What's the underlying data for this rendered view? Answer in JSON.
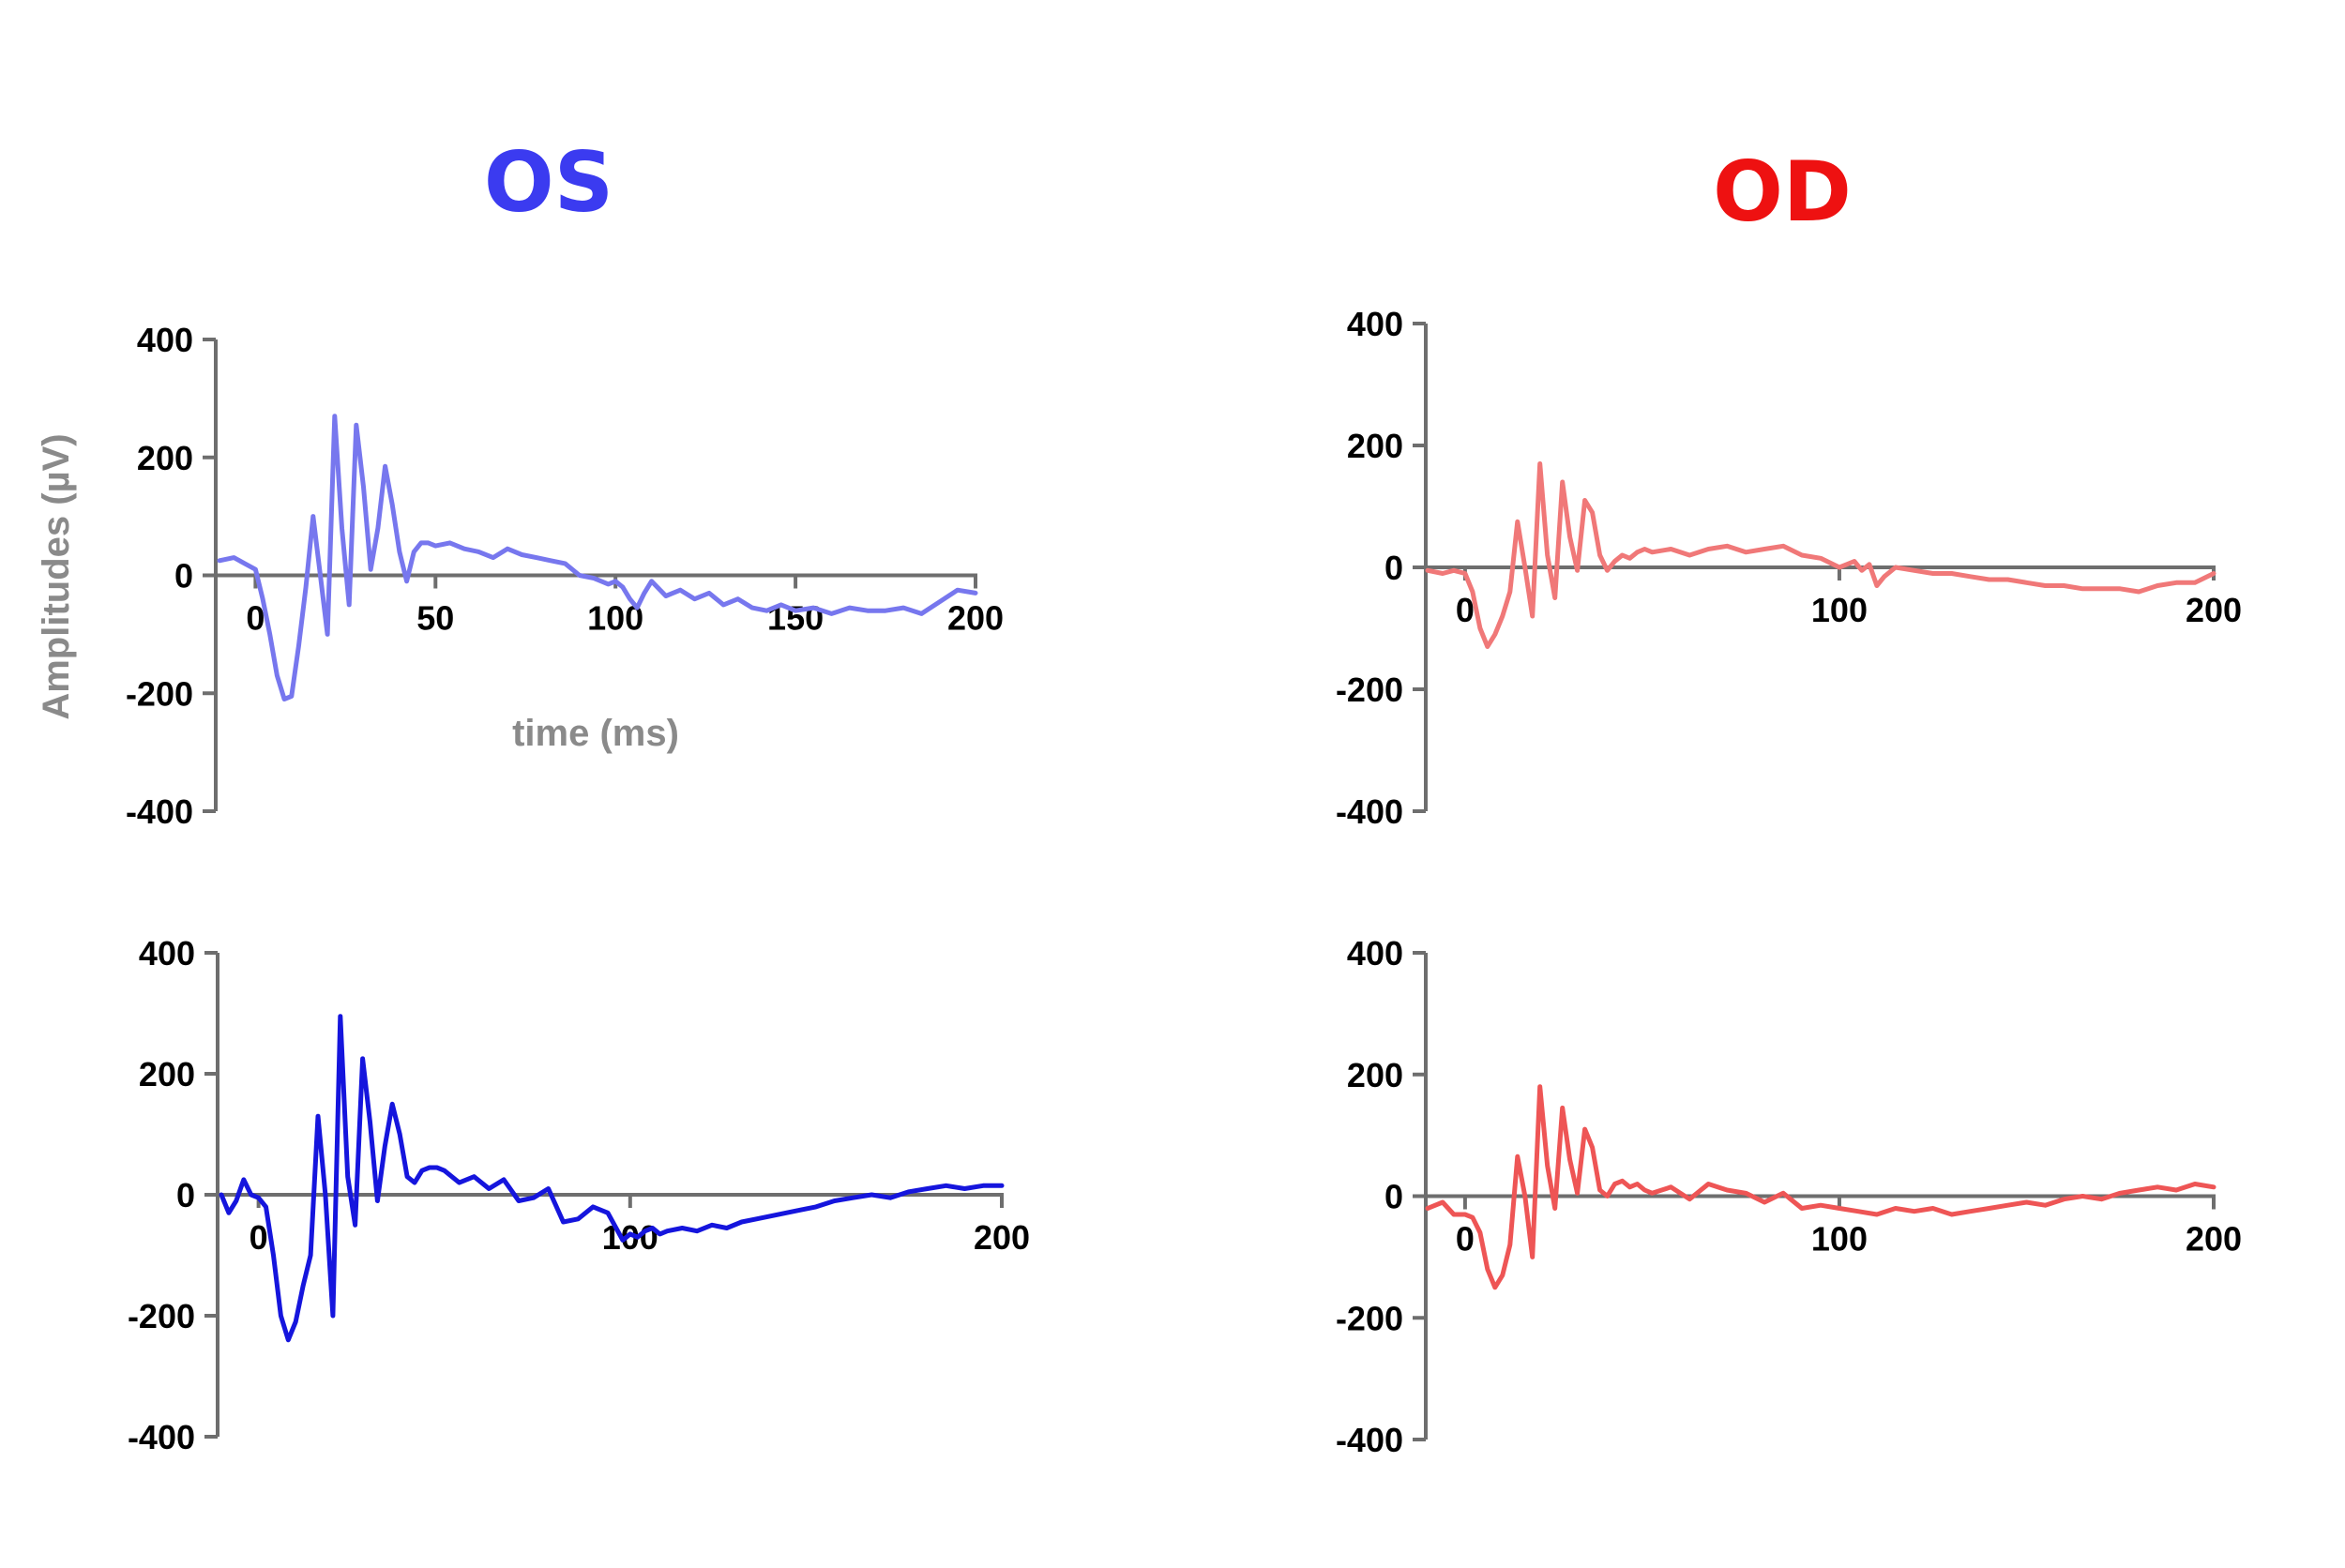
{
  "titles": {
    "left": "OS",
    "right": "OD",
    "left_color": "#3b3bf0",
    "right_color": "#ee1111"
  },
  "axis_color": "#6e6e6e",
  "chart_data": [
    {
      "type": "line",
      "column": "OS",
      "row": 1,
      "xlabel": "time (ms)",
      "ylabel": "Amplitudes (µV)",
      "xticks": [
        0,
        50,
        100,
        150,
        200
      ],
      "yticks": [
        400,
        200,
        0,
        -200,
        -400
      ],
      "xlim": [
        -10,
        200
      ],
      "ylim": [
        -400,
        400
      ],
      "grid": false,
      "color": "#7777ee",
      "x": [
        -10,
        -6,
        -3,
        0,
        2,
        4,
        6,
        8,
        10,
        12,
        14,
        16,
        18,
        20,
        22,
        24,
        26,
        28,
        30,
        32,
        34,
        36,
        38,
        40,
        42,
        44,
        46,
        48,
        50,
        54,
        58,
        62,
        66,
        70,
        74,
        78,
        82,
        86,
        90,
        94,
        98,
        100,
        102,
        104,
        106,
        108,
        110,
        114,
        118,
        122,
        126,
        130,
        134,
        138,
        142,
        146,
        150,
        155,
        160,
        165,
        170,
        175,
        180,
        185,
        190,
        195,
        200
      ],
      "y": [
        25,
        30,
        20,
        10,
        -40,
        -100,
        -170,
        -210,
        -205,
        -120,
        -20,
        100,
        0,
        -100,
        270,
        80,
        -50,
        255,
        150,
        10,
        80,
        185,
        120,
        40,
        -10,
        40,
        55,
        55,
        50,
        55,
        45,
        40,
        30,
        45,
        35,
        30,
        25,
        20,
        0,
        -5,
        -15,
        -10,
        -20,
        -40,
        -55,
        -30,
        -10,
        -35,
        -25,
        -40,
        -30,
        -50,
        -40,
        -55,
        -60,
        -50,
        -60,
        -55,
        -65,
        -55,
        -60,
        -60,
        -55,
        -65,
        -45,
        -25,
        -30
      ]
    },
    {
      "type": "line",
      "column": "OS",
      "row": 2,
      "xticks": [
        0,
        100,
        200
      ],
      "yticks": [
        400,
        200,
        0,
        -200,
        -400
      ],
      "xlim": [
        -10,
        200
      ],
      "ylim": [
        -400,
        400
      ],
      "grid": false,
      "color": "#1515dd",
      "x": [
        -10,
        -8,
        -6,
        -4,
        -2,
        0,
        2,
        4,
        6,
        8,
        10,
        12,
        14,
        16,
        18,
        20,
        22,
        24,
        26,
        28,
        30,
        32,
        34,
        36,
        38,
        40,
        42,
        44,
        46,
        48,
        50,
        54,
        58,
        62,
        66,
        70,
        74,
        78,
        82,
        86,
        90,
        94,
        98,
        100,
        102,
        104,
        106,
        108,
        110,
        114,
        118,
        122,
        126,
        130,
        134,
        138,
        142,
        146,
        150,
        155,
        160,
        165,
        170,
        175,
        180,
        185,
        190,
        195,
        200
      ],
      "y": [
        0,
        -30,
        -10,
        25,
        0,
        -5,
        -20,
        -100,
        -200,
        -240,
        -210,
        -150,
        -100,
        130,
        0,
        -200,
        295,
        30,
        -50,
        225,
        120,
        -10,
        80,
        150,
        100,
        30,
        20,
        40,
        45,
        45,
        40,
        20,
        30,
        10,
        25,
        -10,
        -5,
        10,
        -45,
        -40,
        -20,
        -30,
        -75,
        -65,
        -70,
        -60,
        -55,
        -65,
        -60,
        -55,
        -60,
        -50,
        -55,
        -45,
        -40,
        -35,
        -30,
        -25,
        -20,
        -10,
        -5,
        0,
        -5,
        5,
        10,
        15,
        10,
        15,
        15
      ]
    },
    {
      "type": "line",
      "column": "OD",
      "row": 1,
      "xticks": [
        0,
        100,
        200
      ],
      "yticks": [
        400,
        200,
        0,
        -200,
        -400
      ],
      "xlim": [
        -10,
        200
      ],
      "ylim": [
        -400,
        400
      ],
      "grid": false,
      "color": "#f07878",
      "x": [
        -10,
        -6,
        -3,
        0,
        2,
        4,
        6,
        8,
        10,
        12,
        14,
        16,
        18,
        20,
        22,
        24,
        26,
        28,
        30,
        32,
        34,
        36,
        38,
        40,
        42,
        44,
        46,
        48,
        50,
        55,
        60,
        65,
        70,
        75,
        80,
        85,
        90,
        95,
        100,
        102,
        104,
        106,
        108,
        110,
        112,
        115,
        120,
        125,
        130,
        135,
        140,
        145,
        150,
        155,
        160,
        165,
        170,
        175,
        180,
        185,
        190,
        195,
        200
      ],
      "y": [
        -5,
        -10,
        -5,
        -10,
        -40,
        -100,
        -130,
        -110,
        -80,
        -40,
        75,
        0,
        -80,
        170,
        20,
        -50,
        140,
        50,
        -5,
        110,
        90,
        20,
        -5,
        10,
        20,
        15,
        25,
        30,
        25,
        30,
        20,
        30,
        35,
        25,
        30,
        35,
        20,
        15,
        0,
        5,
        10,
        -5,
        5,
        -30,
        -15,
        0,
        -5,
        -10,
        -10,
        -15,
        -20,
        -20,
        -25,
        -30,
        -30,
        -35,
        -35,
        -35,
        -40,
        -30,
        -25,
        -25,
        -10
      ]
    },
    {
      "type": "line",
      "column": "OD",
      "row": 2,
      "xticks": [
        0,
        100,
        200
      ],
      "yticks": [
        400,
        200,
        0,
        -200,
        -400
      ],
      "xlim": [
        -10,
        200
      ],
      "ylim": [
        -400,
        400
      ],
      "grid": false,
      "color": "#ee5555",
      "x": [
        -10,
        -6,
        -3,
        0,
        2,
        4,
        6,
        8,
        10,
        12,
        14,
        16,
        18,
        20,
        22,
        24,
        26,
        28,
        30,
        32,
        34,
        36,
        38,
        40,
        42,
        44,
        46,
        48,
        50,
        55,
        60,
        65,
        70,
        75,
        80,
        85,
        90,
        95,
        100,
        105,
        110,
        115,
        120,
        125,
        130,
        135,
        140,
        145,
        150,
        155,
        160,
        165,
        170,
        175,
        180,
        185,
        190,
        195,
        200
      ],
      "y": [
        -20,
        -10,
        -30,
        -30,
        -35,
        -60,
        -120,
        -150,
        -130,
        -80,
        65,
        0,
        -100,
        180,
        50,
        -20,
        145,
        60,
        5,
        110,
        80,
        10,
        0,
        20,
        25,
        15,
        20,
        10,
        5,
        15,
        -5,
        20,
        10,
        5,
        -10,
        5,
        -20,
        -15,
        -20,
        -25,
        -30,
        -20,
        -25,
        -20,
        -30,
        -25,
        -20,
        -15,
        -10,
        -15,
        -5,
        0,
        -5,
        5,
        10,
        15,
        10,
        20,
        15
      ]
    }
  ]
}
